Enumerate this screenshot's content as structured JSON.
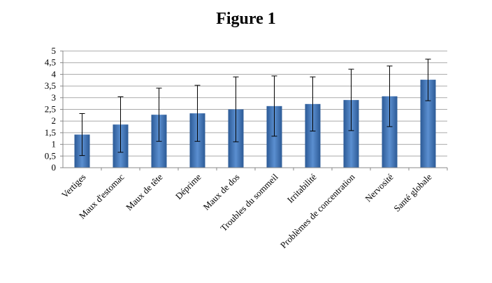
{
  "title": "Figure 1",
  "chart_data": {
    "type": "bar",
    "title": "Figure 1",
    "xlabel": "",
    "ylabel": "",
    "ylim": [
      0,
      5
    ],
    "yticks": [
      "0",
      "0,5",
      "1",
      "1,5",
      "2",
      "2,5",
      "3",
      "3,5",
      "4",
      "4,5",
      "5"
    ],
    "grid": true,
    "categories": [
      "Vertiges",
      "Maux d'estomac",
      "Maux de tête",
      "Déprime",
      "Maux de dos",
      "Troubles du sommeil",
      "Irritabilité",
      "Problèmes de concentration",
      "Nervosité",
      "Santé globale"
    ],
    "values": [
      1.42,
      1.85,
      2.27,
      2.33,
      2.5,
      2.64,
      2.73,
      2.9,
      3.06,
      3.77
    ],
    "error_low": [
      0.52,
      0.66,
      1.13,
      1.13,
      1.11,
      1.35,
      1.57,
      1.59,
      1.76,
      2.87
    ],
    "error_high": [
      2.32,
      3.04,
      3.41,
      3.53,
      3.89,
      3.93,
      3.89,
      4.22,
      4.36,
      4.65
    ],
    "colors": {
      "bar": "#3f74b9",
      "bar_light": "#5b8fd0",
      "bar_dark": "#2c5a96",
      "grid": "#aaaaaa",
      "axis": "#888888"
    }
  }
}
